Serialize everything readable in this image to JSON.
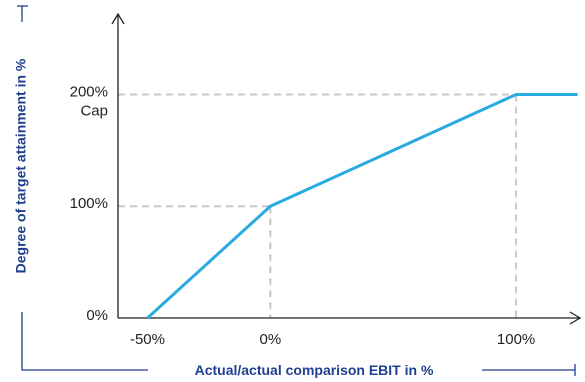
{
  "chart_data": {
    "type": "line",
    "xlabel": "Actual/actual comparison EBIT in %",
    "ylabel": "Degree of target attainment in %",
    "x_ticks": [
      {
        "value": -50,
        "label": "-50%"
      },
      {
        "value": 0,
        "label": "0%"
      },
      {
        "value": 100,
        "label": "100%"
      }
    ],
    "y_ticks": [
      {
        "value": 0,
        "label": "0%"
      },
      {
        "value": 100,
        "label": "100%"
      },
      {
        "value": 200,
        "label": "200%"
      }
    ],
    "cap_label": "Cap",
    "series": [
      {
        "values_x": [
          -50,
          0,
          100,
          125
        ],
        "values_y": [
          0,
          100,
          200,
          200
        ]
      }
    ],
    "guides": [
      {
        "x": 0,
        "y": 100
      },
      {
        "x": 100,
        "y": 200
      }
    ],
    "xlim": [
      -62,
      126
    ],
    "ylim": [
      0,
      272
    ],
    "grid": false,
    "colors": {
      "line": "#29abe2",
      "axis": "#222222",
      "guide": "#c8c8c8",
      "axis_title": "#1f3f8f",
      "bracket": "#1f3f8f"
    }
  }
}
